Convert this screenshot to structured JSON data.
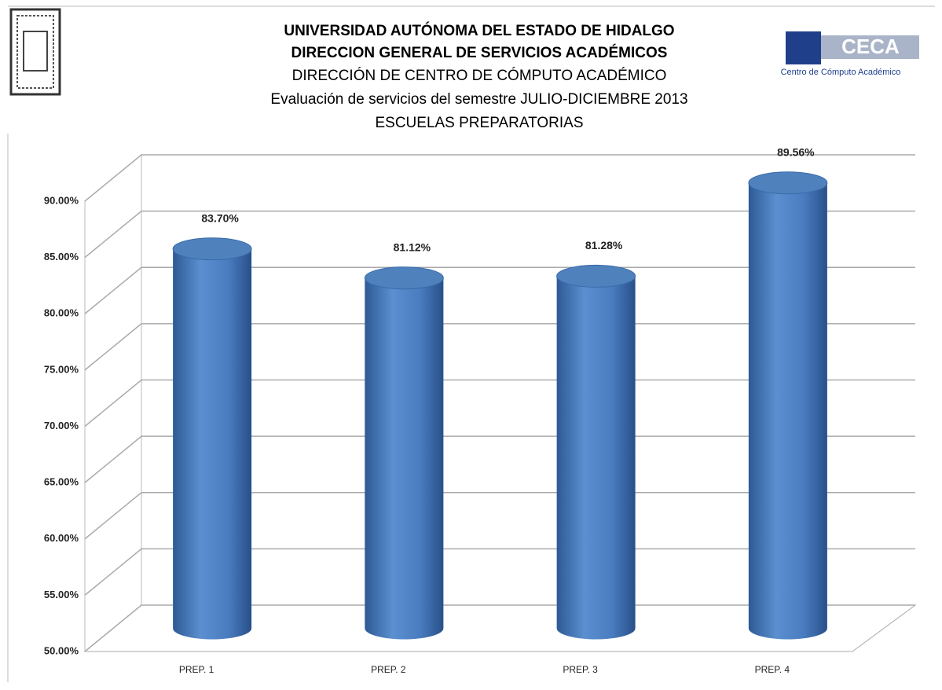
{
  "header": {
    "lines": [
      "UNIVERSIDAD AUTÓNOMA DEL ESTADO DE HIDALGO",
      "DIRECCION GENERAL DE SERVICIOS ACADÉMICOS",
      "DIRECCIÓN DE CENTRO DE CÓMPUTO ACADÉMICO",
      "Evaluación de servicios del semestre  JULIO-DICIEMBRE 2013",
      "ESCUELAS PREPARATORIAS"
    ],
    "logo_text": "CECA",
    "logo_caption": "Centro de Cómputo Académico"
  },
  "chart_data": {
    "type": "bar3d",
    "categories": [
      "PREP. 1",
      "PREP. 2",
      "PREP. 3",
      "PREP.  4"
    ],
    "values": [
      83.7,
      81.12,
      81.28,
      89.56
    ],
    "value_labels": [
      "83.70%",
      "81.12%",
      "81.28%",
      "89.56%"
    ],
    "color": "#4f81bd",
    "ylim": [
      50,
      90
    ],
    "yticks": [
      {
        "value": 50,
        "label": "50.00%"
      },
      {
        "value": 55,
        "label": "55.00%"
      },
      {
        "value": 60,
        "label": "60.00%"
      },
      {
        "value": 65,
        "label": "65.00%"
      },
      {
        "value": 70,
        "label": "70.00%"
      },
      {
        "value": 75,
        "label": "75.00%"
      },
      {
        "value": 80,
        "label": "80.00%"
      },
      {
        "value": 85,
        "label": "85.00%"
      },
      {
        "value": 90,
        "label": "90.00%"
      }
    ],
    "grid": true
  }
}
